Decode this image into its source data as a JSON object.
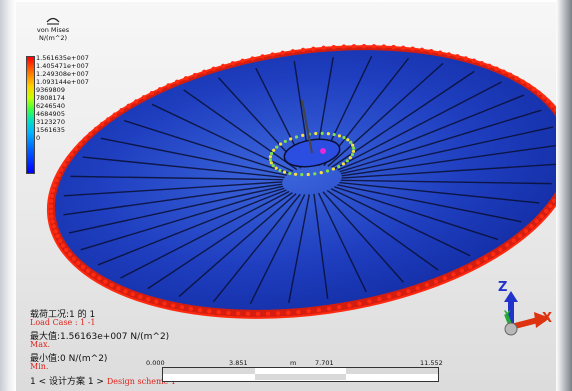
{
  "legend": {
    "icon": "stress-plot-icon",
    "title": "von Mises",
    "unit": "N/(m^2)",
    "ticks": [
      "1.561635e+007",
      "1.405471e+007",
      "1.249308e+007",
      "1.093144e+007",
      "9369809",
      "7808174",
      "6246540",
      "4684905",
      "3123270",
      "1561635",
      "0"
    ],
    "colors": [
      "#ff0000",
      "#ffd000",
      "#40ff40",
      "#00b4ff",
      "#0000ff"
    ]
  },
  "info": {
    "load_case_zh": "载荷工况:1 的 1",
    "load_case_en": "Load Case :  1 -1",
    "max_zh": "最大值:1.56163e+007 N/(m^2)",
    "max_en": "Max.",
    "min_zh": "最小值:0 N/(m^2)",
    "min_en": "Min.",
    "scheme_zh": "1 < 设计方案 1 >",
    "scheme_en": "Design scheme 1"
  },
  "scale": {
    "labels": [
      "0.000",
      "3.851",
      "m",
      "7.701",
      "11.552"
    ]
  },
  "axes": {
    "z": "Z",
    "y": "Y",
    "x": "X",
    "colors": {
      "z": "#2233cc",
      "y": "#22aa33",
      "x": "#dd3311"
    }
  }
}
